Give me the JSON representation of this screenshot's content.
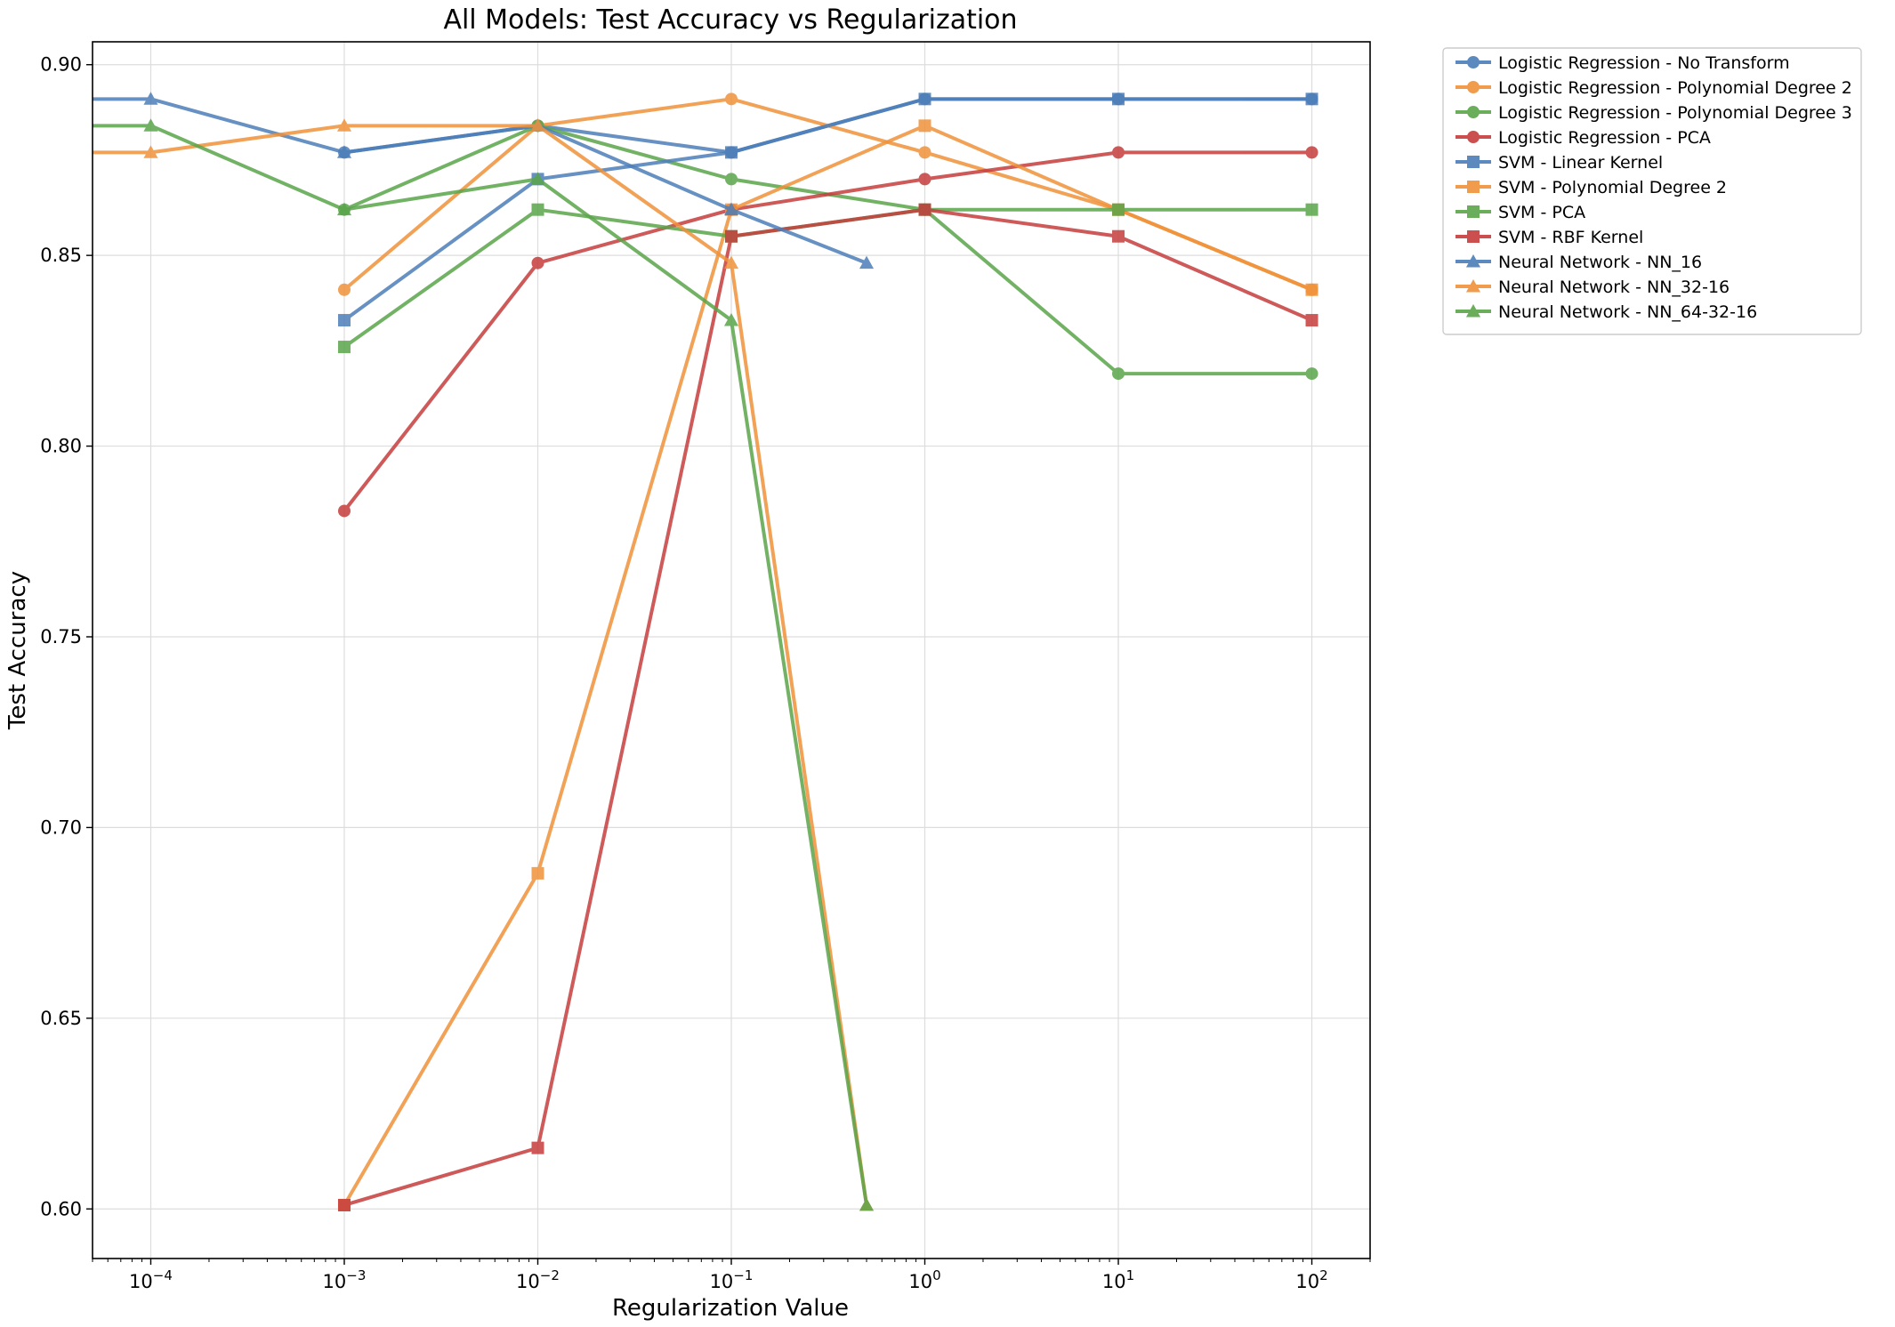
{
  "chart_data": {
    "type": "line",
    "title": "All Models: Test Accuracy vs Regularization",
    "xlabel": "Regularization Value",
    "ylabel": "Test Accuracy",
    "xscale": "log",
    "xlim": [
      5e-05,
      200
    ],
    "ylim": [
      0.587,
      0.906
    ],
    "grid": true,
    "legend_position": "outside-top-right",
    "y_ticks": [
      0.6,
      0.65,
      0.7,
      0.75,
      0.8,
      0.85,
      0.9
    ],
    "y_tick_labels": [
      "0.60",
      "0.65",
      "0.70",
      "0.75",
      "0.80",
      "0.85",
      "0.90"
    ],
    "x_ticks": [
      0.0001,
      0.001,
      0.01,
      0.1,
      1,
      10,
      100
    ],
    "x_tick_labels": [
      {
        "base": "10",
        "exp": "−4"
      },
      {
        "base": "10",
        "exp": "−3"
      },
      {
        "base": "10",
        "exp": "−2"
      },
      {
        "base": "10",
        "exp": "−1"
      },
      {
        "base": "10",
        "exp": "0"
      },
      {
        "base": "10",
        "exp": "1"
      },
      {
        "base": "10",
        "exp": "2"
      }
    ],
    "series": [
      {
        "name": "Logistic Regression - No Transform",
        "color": "#4c7eb8",
        "marker": "circle",
        "x": [
          0.001,
          0.01,
          0.1,
          1,
          10,
          100
        ],
        "y": [
          0.877,
          0.884,
          0.877,
          0.891,
          0.891,
          0.891
        ]
      },
      {
        "name": "Logistic Regression - Polynomial Degree 2",
        "color": "#f0923a",
        "marker": "circle",
        "x": [
          0.001,
          0.01,
          0.1,
          1,
          10,
          100
        ],
        "y": [
          0.841,
          0.884,
          0.891,
          0.877,
          0.862,
          0.841
        ]
      },
      {
        "name": "Logistic Regression - Polynomial Degree 3",
        "color": "#5aa54a",
        "marker": "circle",
        "x": [
          0.001,
          0.01,
          0.1,
          1,
          10,
          100
        ],
        "y": [
          0.862,
          0.884,
          0.87,
          0.862,
          0.819,
          0.819
        ]
      },
      {
        "name": "Logistic Regression - PCA",
        "color": "#c63d3d",
        "marker": "circle",
        "x": [
          0.001,
          0.01,
          0.1,
          1,
          10,
          100
        ],
        "y": [
          0.783,
          0.848,
          0.862,
          0.87,
          0.877,
          0.877
        ]
      },
      {
        "name": "SVM - Linear Kernel",
        "color": "#4c7eb8",
        "marker": "square",
        "x": [
          0.001,
          0.01,
          0.1,
          1,
          10,
          100
        ],
        "y": [
          0.833,
          0.87,
          0.877,
          0.891,
          0.891,
          0.891
        ]
      },
      {
        "name": "SVM - Polynomial Degree 2",
        "color": "#f0923a",
        "marker": "square",
        "x": [
          0.001,
          0.01,
          0.1,
          1,
          10,
          100
        ],
        "y": [
          0.601,
          0.688,
          0.862,
          0.884,
          0.862,
          0.841
        ]
      },
      {
        "name": "SVM - PCA",
        "color": "#5aa54a",
        "marker": "square",
        "x": [
          0.001,
          0.01,
          0.1,
          1,
          10,
          100
        ],
        "y": [
          0.826,
          0.862,
          0.855,
          0.862,
          0.862,
          0.862
        ]
      },
      {
        "name": "SVM - RBF Kernel",
        "color": "#c63d3d",
        "marker": "square",
        "x": [
          0.001,
          0.01,
          0.1,
          1,
          10,
          100
        ],
        "y": [
          0.601,
          0.616,
          0.855,
          0.862,
          0.855,
          0.833
        ]
      },
      {
        "name": "Neural Network - NN_16",
        "color": "#4c7eb8",
        "marker": "triangle",
        "x": [
          1e-05,
          0.0001,
          0.001,
          0.01,
          0.1,
          0.5
        ],
        "y": [
          0.891,
          0.891,
          0.877,
          0.884,
          0.862,
          0.848
        ]
      },
      {
        "name": "Neural Network - NN_32-16",
        "color": "#f0923a",
        "marker": "triangle",
        "x": [
          1e-05,
          0.0001,
          0.001,
          0.01,
          0.1,
          0.5
        ],
        "y": [
          0.877,
          0.877,
          0.884,
          0.884,
          0.848,
          0.601
        ]
      },
      {
        "name": "Neural Network - NN_64-32-16",
        "color": "#5aa54a",
        "marker": "triangle",
        "x": [
          1e-05,
          0.0001,
          0.001,
          0.01,
          0.1,
          0.5
        ],
        "y": [
          0.884,
          0.884,
          0.862,
          0.87,
          0.833,
          0.601
        ]
      }
    ]
  }
}
